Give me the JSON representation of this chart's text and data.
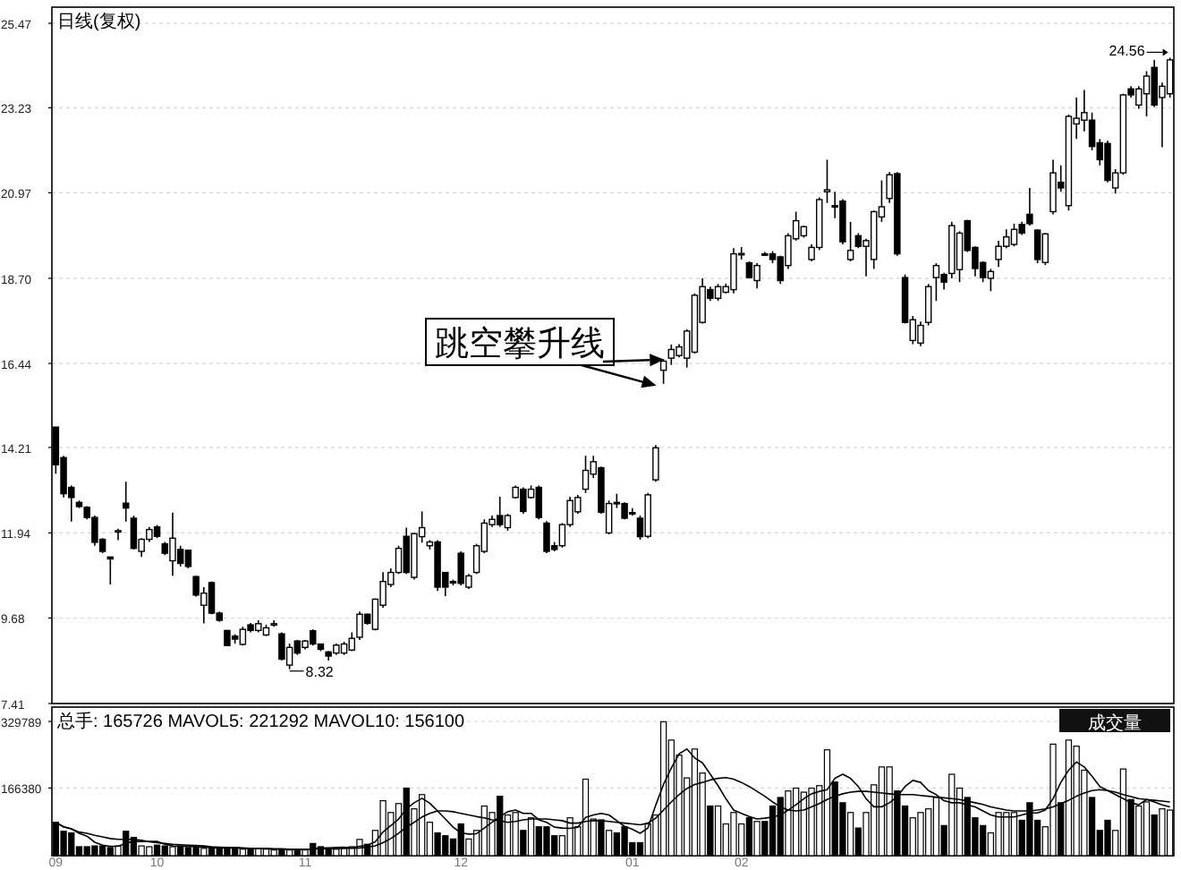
{
  "chart_data": [
    {
      "type": "candlestick",
      "title": "日线(复权)",
      "categories": [
        "09",
        null,
        null,
        null,
        null,
        null,
        null,
        null,
        null,
        null,
        null,
        null,
        null,
        "10",
        null,
        null,
        null,
        null,
        null,
        null,
        null,
        null,
        null,
        null,
        null,
        null,
        null,
        null,
        null,
        null,
        null,
        null,
        "11",
        null,
        null,
        null,
        null,
        null,
        null,
        null,
        null,
        null,
        null,
        null,
        null,
        null,
        null,
        null,
        null,
        null,
        null,
        null,
        "12",
        null,
        null,
        null,
        null,
        null,
        null,
        null,
        null,
        null,
        null,
        null,
        null,
        null,
        null,
        null,
        null,
        null,
        null,
        null,
        null,
        null,
        "01",
        null,
        null,
        null,
        null,
        null,
        null,
        null,
        null,
        null,
        null,
        null,
        null,
        null,
        "02",
        null,
        null,
        null,
        null,
        null,
        null,
        null,
        null,
        null,
        null,
        null,
        null,
        null,
        null,
        null,
        null,
        null,
        null,
        null,
        null,
        null,
        null,
        null,
        null,
        null,
        null,
        null,
        null,
        null,
        null,
        null,
        null,
        null,
        null,
        null,
        null,
        null,
        null,
        null,
        null,
        null,
        null,
        null,
        null,
        null,
        null,
        null,
        null,
        null,
        null,
        null,
        null,
        null,
        null,
        null
      ],
      "ohlc": [
        [
          14.75,
          14.75,
          13.51,
          13.75
        ],
        [
          13.94,
          13.99,
          12.88,
          12.98
        ],
        [
          13.15,
          13.2,
          12.24,
          12.88
        ],
        [
          12.75,
          12.8,
          12.6,
          12.64
        ],
        [
          12.62,
          12.65,
          12.3,
          12.35
        ],
        [
          12.35,
          12.4,
          11.6,
          11.69
        ],
        [
          11.77,
          11.8,
          11.4,
          11.45
        ],
        [
          11.3,
          11.3,
          10.57,
          11.25
        ],
        [
          11.98,
          12.05,
          11.75,
          12.0
        ],
        [
          12.73,
          13.3,
          12.24,
          12.6
        ],
        [
          12.33,
          12.4,
          11.5,
          11.53
        ],
        [
          11.45,
          11.8,
          11.3,
          11.77
        ],
        [
          11.77,
          12.1,
          11.7,
          12.03
        ],
        [
          12.1,
          12.15,
          11.8,
          11.85
        ],
        [
          11.65,
          11.7,
          11.35,
          11.4
        ],
        [
          11.2,
          12.48,
          10.8,
          11.8
        ],
        [
          11.5,
          11.6,
          11.05,
          11.13
        ],
        [
          11.48,
          11.5,
          11.0,
          11.05
        ],
        [
          10.78,
          10.8,
          10.25,
          10.29
        ],
        [
          10.02,
          10.5,
          9.54,
          10.34
        ],
        [
          10.62,
          10.65,
          9.78,
          9.81
        ],
        [
          9.81,
          9.85,
          9.58,
          9.62
        ],
        [
          9.35,
          9.36,
          8.93,
          8.95
        ],
        [
          9.2,
          9.25,
          9.0,
          9.12
        ],
        [
          8.98,
          9.45,
          8.95,
          9.38
        ],
        [
          9.5,
          9.55,
          9.3,
          9.35
        ],
        [
          9.35,
          9.62,
          9.3,
          9.53
        ],
        [
          9.23,
          9.5,
          9.2,
          9.42
        ],
        [
          9.5,
          9.62,
          9.45,
          9.53
        ],
        [
          9.26,
          9.3,
          8.55,
          8.59
        ],
        [
          8.43,
          9.0,
          8.32,
          8.9
        ],
        [
          9.07,
          9.1,
          8.7,
          8.75
        ],
        [
          8.9,
          9.1,
          8.85,
          9.07
        ],
        [
          9.34,
          9.38,
          8.95,
          8.99
        ],
        [
          8.99,
          9.0,
          8.8,
          8.85
        ],
        [
          8.78,
          8.8,
          8.55,
          8.67
        ],
        [
          8.75,
          9.0,
          8.7,
          8.96
        ],
        [
          8.75,
          9.05,
          8.7,
          8.99
        ],
        [
          8.83,
          9.3,
          8.8,
          9.14
        ],
        [
          9.17,
          9.85,
          9.1,
          9.78
        ],
        [
          9.78,
          9.8,
          9.5,
          9.54
        ],
        [
          9.38,
          10.2,
          9.35,
          10.18
        ],
        [
          10.02,
          10.9,
          9.95,
          10.65
        ],
        [
          10.57,
          11.0,
          10.5,
          10.89
        ],
        [
          10.89,
          11.6,
          10.85,
          11.53
        ],
        [
          11.85,
          12.08,
          10.85,
          10.89
        ],
        [
          10.76,
          11.95,
          10.7,
          11.92
        ],
        [
          11.84,
          12.51,
          11.68,
          12.08
        ],
        [
          11.6,
          11.75,
          11.5,
          11.7
        ],
        [
          11.7,
          11.75,
          10.4,
          10.5
        ],
        [
          10.89,
          10.9,
          10.26,
          10.5
        ],
        [
          10.65,
          10.7,
          10.55,
          10.62
        ],
        [
          11.4,
          11.45,
          10.55,
          10.6
        ],
        [
          10.5,
          10.85,
          10.45,
          10.8
        ],
        [
          10.89,
          11.65,
          10.85,
          11.6
        ],
        [
          11.45,
          12.3,
          11.4,
          12.2
        ],
        [
          12.16,
          12.4,
          12.1,
          12.3
        ],
        [
          12.4,
          12.9,
          12.1,
          12.16
        ],
        [
          12.08,
          12.45,
          12.0,
          12.4
        ],
        [
          12.88,
          13.2,
          12.85,
          13.15
        ],
        [
          13.1,
          13.15,
          12.45,
          12.51
        ],
        [
          12.88,
          13.2,
          12.85,
          13.1
        ],
        [
          13.15,
          13.2,
          12.3,
          12.35
        ],
        [
          12.2,
          12.25,
          11.4,
          11.45
        ],
        [
          11.6,
          11.7,
          11.45,
          11.5
        ],
        [
          11.6,
          12.2,
          11.55,
          12.16
        ],
        [
          12.16,
          12.9,
          12.1,
          12.8
        ],
        [
          12.5,
          12.95,
          12.45,
          12.88
        ],
        [
          13.1,
          13.99,
          13.0,
          13.6
        ],
        [
          13.5,
          13.99,
          13.4,
          13.83
        ],
        [
          13.67,
          13.7,
          12.45,
          12.49
        ],
        [
          11.94,
          12.8,
          11.9,
          12.72
        ],
        [
          12.75,
          12.98,
          12.6,
          12.72
        ],
        [
          12.72,
          12.75,
          12.3,
          12.33
        ],
        [
          12.48,
          12.6,
          12.4,
          12.46
        ],
        [
          12.33,
          12.4,
          11.76,
          11.84
        ],
        [
          11.85,
          13.0,
          11.8,
          12.95
        ],
        [
          13.35,
          14.27,
          13.3,
          14.2
        ],
        [
          16.26,
          16.55,
          15.9,
          16.5
        ],
        [
          16.58,
          16.94,
          16.4,
          16.81
        ],
        [
          16.65,
          16.95,
          16.6,
          16.88
        ],
        [
          16.58,
          17.35,
          16.33,
          17.3
        ],
        [
          16.74,
          18.3,
          16.7,
          18.25
        ],
        [
          17.53,
          18.7,
          17.5,
          18.48
        ],
        [
          18.4,
          18.48,
          18.1,
          18.17
        ],
        [
          18.17,
          18.55,
          18.1,
          18.48
        ],
        [
          18.33,
          18.56,
          18.3,
          18.48
        ],
        [
          18.4,
          19.5,
          18.3,
          19.35
        ],
        [
          19.35,
          19.53,
          19.2,
          19.36
        ],
        [
          19.11,
          19.15,
          18.7,
          18.72
        ],
        [
          18.64,
          19.1,
          18.43,
          19.04
        ],
        [
          19.35,
          19.4,
          19.3,
          19.33
        ],
        [
          19.35,
          19.42,
          19.1,
          19.2
        ],
        [
          19.27,
          19.3,
          18.55,
          18.64
        ],
        [
          19.04,
          19.9,
          18.95,
          19.83
        ],
        [
          19.75,
          20.47,
          19.7,
          20.23
        ],
        [
          19.83,
          20.1,
          19.78,
          20.07
        ],
        [
          19.2,
          19.6,
          19.15,
          19.52
        ],
        [
          19.52,
          20.85,
          19.45,
          20.79
        ],
        [
          21.0,
          21.85,
          20.7,
          21.05
        ],
        [
          20.63,
          21.0,
          20.3,
          20.6
        ],
        [
          20.75,
          20.8,
          19.6,
          19.67
        ],
        [
          19.2,
          20.2,
          19.15,
          19.44
        ],
        [
          19.83,
          19.9,
          19.5,
          19.55
        ],
        [
          19.55,
          19.75,
          18.75,
          19.7
        ],
        [
          19.2,
          20.5,
          18.95,
          20.47
        ],
        [
          20.33,
          21.3,
          20.2,
          20.6
        ],
        [
          20.82,
          21.52,
          20.7,
          21.45
        ],
        [
          21.48,
          21.52,
          19.3,
          19.35
        ],
        [
          18.72,
          18.8,
          17.5,
          17.53
        ],
        [
          17.05,
          17.7,
          16.95,
          17.6
        ],
        [
          16.98,
          17.55,
          16.9,
          17.45
        ],
        [
          17.53,
          18.55,
          17.45,
          18.48
        ],
        [
          18.72,
          19.1,
          18.1,
          19.04
        ],
        [
          18.8,
          18.85,
          18.4,
          18.6
        ],
        [
          18.83,
          20.2,
          18.7,
          20.1
        ],
        [
          18.93,
          19.95,
          18.6,
          19.9
        ],
        [
          20.23,
          20.25,
          19.4,
          19.44
        ],
        [
          19.52,
          19.55,
          18.75,
          18.96
        ],
        [
          19.12,
          19.15,
          18.6,
          18.72
        ],
        [
          18.7,
          18.95,
          18.36,
          18.88
        ],
        [
          19.2,
          19.7,
          19.0,
          19.55
        ],
        [
          19.55,
          20.0,
          19.5,
          19.8
        ],
        [
          19.6,
          20.15,
          19.55,
          20.0
        ],
        [
          20.13,
          20.2,
          19.85,
          19.9
        ],
        [
          20.4,
          21.1,
          20.1,
          20.15
        ],
        [
          19.98,
          20.0,
          19.1,
          19.2
        ],
        [
          19.12,
          19.9,
          19.05,
          19.88
        ],
        [
          20.47,
          21.85,
          20.4,
          21.5
        ],
        [
          21.25,
          21.7,
          21.0,
          21.1
        ],
        [
          20.63,
          23.05,
          20.5,
          23.0
        ],
        [
          22.8,
          23.5,
          22.4,
          22.95
        ],
        [
          22.9,
          23.7,
          22.6,
          23.1
        ],
        [
          22.9,
          23.1,
          22.1,
          22.2
        ],
        [
          22.3,
          22.4,
          21.7,
          21.85
        ],
        [
          22.28,
          22.35,
          21.25,
          21.3
        ],
        [
          21.1,
          21.6,
          20.95,
          21.5
        ],
        [
          21.5,
          23.6,
          21.45,
          23.57
        ],
        [
          23.73,
          23.8,
          23.5,
          23.57
        ],
        [
          23.3,
          23.8,
          23.2,
          23.73
        ],
        [
          23.6,
          24.2,
          23.0,
          24.07
        ],
        [
          24.3,
          24.5,
          23.25,
          23.3
        ],
        [
          23.5,
          23.9,
          22.18,
          23.8
        ],
        [
          23.6,
          24.56,
          23.5,
          24.5
        ]
      ],
      "ylim": [
        7.41,
        25.9
      ],
      "yticks": [
        7.41,
        9.68,
        11.94,
        14.21,
        16.44,
        {
          "value": 18.7,
          "label": "18.70"
        },
        20.97,
        23.23,
        25.47
      ],
      "grid": "y",
      "tick_labels": "y",
      "annotations": [
        "跳空攀升线",
        "8.32",
        "24.56"
      ]
    },
    {
      "type": "bar",
      "title": "总手: 165726 MAVOL5: 221292 MAVOL10: 156100",
      "categories": [
        "09",
        null,
        null,
        null,
        null,
        null,
        null,
        null,
        null,
        null,
        null,
        null,
        null,
        "10",
        null,
        null,
        null,
        null,
        null,
        null,
        null,
        null,
        null,
        null,
        null,
        null,
        null,
        null,
        null,
        null,
        null,
        null,
        "11",
        null,
        null,
        null,
        null,
        null,
        null,
        null,
        null,
        null,
        null,
        null,
        null,
        null,
        null,
        null,
        null,
        null,
        null,
        null,
        "12",
        null,
        null,
        null,
        null,
        null,
        null,
        null,
        null,
        null,
        null,
        null,
        null,
        null,
        null,
        null,
        null,
        null,
        null,
        null,
        null,
        null,
        "01",
        null,
        null,
        null,
        null,
        null,
        null,
        null,
        null,
        null,
        null,
        null,
        null,
        null,
        "02",
        null,
        null,
        null,
        null,
        null,
        null,
        null,
        null,
        null,
        null,
        null,
        null,
        null,
        null,
        null,
        null,
        null,
        null,
        null,
        null,
        null,
        null,
        null,
        null,
        null,
        null,
        null,
        null,
        null,
        null,
        null,
        null,
        null,
        null,
        null,
        null,
        null,
        null,
        null,
        null,
        null,
        null,
        null,
        null,
        null,
        null,
        null,
        null,
        null,
        null,
        null,
        null,
        null,
        null,
        null
      ],
      "series": [
        {
          "type": "bar",
          "values": [
            82000,
            60000,
            56000,
            22000,
            22000,
            24000,
            24000,
            20000,
            24000,
            60000,
            45000,
            24000,
            22000,
            26000,
            24000,
            22000,
            24000,
            20000,
            22000,
            18000,
            20000,
            18000,
            20000,
            18000,
            16000,
            16000,
            18000,
            16000,
            14000,
            16000,
            14000,
            13000,
            14000,
            30000,
            22000,
            16000,
            16000,
            18000,
            22000,
            40000,
            28000,
            62000,
            135000,
            106000,
            128000,
            166000,
            115000,
            150000,
            82000,
            56000,
            49000,
            41000,
            78000,
            41000,
            62000,
            122000,
            106000,
            146000,
            100000,
            106000,
            62000,
            93000,
            71000,
            71000,
            49000,
            49000,
            93000,
            71000,
            188000,
            90000,
            88000,
            62000,
            56000,
            71000,
            32000,
            32000,
            78000,
            100000,
            329000,
            284000,
            247000,
            191000,
            262000,
            203000,
            122000,
            122000,
            78000,
            106000,
            78000,
            93000,
            84000,
            84000,
            122000,
            143000,
            159000,
            166000,
            156000,
            166000,
            172000,
            260000,
            181000,
            130000,
            106000,
            68000,
            106000,
            174000,
            218000,
            218000,
            159000,
            122000,
            93000,
            106000,
            115000,
            143000,
            74000,
            200000,
            166000,
            143000,
            93000,
            74000,
            56000,
            106000,
            106000,
            106000,
            87000,
            130000,
            87000,
            71000,
            274000,
            130000,
            284000,
            269000,
            210000,
            143000,
            62000,
            87000,
            62000,
            213000,
            138000,
            122000,
            132000,
            100000,
            115000,
            112000
          ],
          "colors": [
            "#000000",
            "#000000",
            "#000000",
            "#000000",
            "#000000",
            "#000000",
            "#000000",
            "#000000",
            "#ffffff",
            "#000000",
            "#000000",
            "#ffffff",
            "#ffffff",
            "#000000",
            "#000000",
            "#ffffff",
            "#000000",
            "#000000",
            "#000000",
            "#ffffff",
            "#000000",
            "#000000",
            "#000000",
            "#000000",
            "#ffffff",
            "#000000",
            "#ffffff",
            "#ffffff",
            "#ffffff",
            "#000000",
            "#ffffff",
            "#000000",
            "#ffffff",
            "#000000",
            "#000000",
            "#000000",
            "#ffffff",
            "#ffffff",
            "#ffffff",
            "#ffffff",
            "#000000",
            "#ffffff",
            "#ffffff",
            "#ffffff",
            "#ffffff",
            "#000000",
            "#ffffff",
            "#ffffff",
            "#ffffff",
            "#000000",
            "#000000",
            "#000000",
            "#000000",
            "#ffffff",
            "#ffffff",
            "#ffffff",
            "#ffffff",
            "#000000",
            "#ffffff",
            "#ffffff",
            "#000000",
            "#ffffff",
            "#000000",
            "#000000",
            "#000000",
            "#ffffff",
            "#ffffff",
            "#ffffff",
            "#ffffff",
            "#ffffff",
            "#000000",
            "#ffffff",
            "#000000",
            "#000000",
            "#000000",
            "#000000",
            "#ffffff",
            "#ffffff",
            "#ffffff",
            "#ffffff",
            "#ffffff",
            "#ffffff",
            "#ffffff",
            "#ffffff",
            "#000000",
            "#ffffff",
            "#ffffff",
            "#ffffff",
            "#ffffff",
            "#000000",
            "#ffffff",
            "#000000",
            "#000000",
            "#000000",
            "#ffffff",
            "#ffffff",
            "#ffffff",
            "#ffffff",
            "#ffffff",
            "#ffffff",
            "#000000",
            "#000000",
            "#ffffff",
            "#000000",
            "#ffffff",
            "#ffffff",
            "#ffffff",
            "#ffffff",
            "#000000",
            "#000000",
            "#ffffff",
            "#ffffff",
            "#ffffff",
            "#ffffff",
            "#000000",
            "#ffffff",
            "#ffffff",
            "#000000",
            "#000000",
            "#000000",
            "#ffffff",
            "#ffffff",
            "#ffffff",
            "#ffffff",
            "#000000",
            "#000000",
            "#000000",
            "#ffffff",
            "#ffffff",
            "#000000",
            "#ffffff",
            "#ffffff",
            "#ffffff",
            "#000000",
            "#000000",
            "#000000",
            "#ffffff",
            "#ffffff",
            "#000000",
            "#ffffff",
            "#ffffff",
            "#000000",
            "#ffffff",
            "#ffffff"
          ]
        },
        {
          "type": "line",
          "color": "#000000",
          "values": [
            82000,
            71000,
            66000,
            55000,
            48000,
            33000,
            26000,
            23000,
            23000,
            31000,
            35000,
            35000,
            35000,
            35000,
            28000,
            24000,
            23000,
            23000,
            22000,
            21000,
            20000,
            19000,
            19000,
            19000,
            18000,
            17000,
            17000,
            17000,
            16000,
            16000,
            15000,
            15000,
            15000,
            17000,
            19000,
            19000,
            20000,
            21000,
            19000,
            23000,
            26000,
            34000,
            58000,
            74000,
            90000,
            115000,
            130000,
            141000,
            129000,
            110000,
            90000,
            70000,
            56000,
            53000,
            54000,
            68000,
            82000,
            96000,
            108000,
            112000,
            104000,
            104000,
            88000,
            82000,
            70000,
            68000,
            67000,
            70000,
            94000,
            100000,
            104000,
            100000,
            86000,
            72000,
            65000,
            55000,
            68000,
            124000,
            175000,
            215000,
            250000,
            262000,
            240000,
            228000,
            200000,
            172000,
            140000,
            112000,
            104000,
            96000,
            90000,
            92000,
            95000,
            100000,
            112000,
            125000,
            140000,
            152000,
            158000,
            162000,
            190000,
            200000,
            190000,
            170000,
            140000,
            120000,
            120000,
            130000,
            145000,
            170000,
            185000,
            180000,
            160000,
            150000,
            135000,
            130000,
            130000,
            125000,
            120000,
            110000,
            100000,
            95000,
            95000,
            95000,
            100000,
            105000,
            105000,
            112000,
            140000,
            180000,
            210000,
            230000,
            218000,
            195000,
            170000,
            160000,
            150000,
            140000,
            130000,
            125000,
            138000,
            132000,
            125000,
            120000
          ]
        },
        {
          "type": "line",
          "color": "#000000",
          "values": [
            82000,
            71000,
            66000,
            58000,
            55000,
            50000,
            46000,
            42000,
            40000,
            40000,
            40000,
            38000,
            34000,
            32000,
            30000,
            28000,
            27000,
            26000,
            25000,
            24000,
            22000,
            21000,
            20000,
            20000,
            19000,
            18000,
            18000,
            18000,
            17000,
            17000,
            16000,
            16000,
            16000,
            16000,
            17000,
            17000,
            17000,
            18000,
            18000,
            19000,
            21000,
            24000,
            32000,
            42000,
            55000,
            70000,
            82000,
            95000,
            104000,
            110000,
            110000,
            108000,
            104000,
            100000,
            96000,
            93000,
            88000,
            86000,
            82000,
            84000,
            88000,
            90000,
            90000,
            90000,
            88000,
            86000,
            80000,
            80000,
            84000,
            86000,
            86000,
            84000,
            82000,
            80000,
            78000,
            76000,
            80000,
            92000,
            112000,
            132000,
            150000,
            165000,
            175000,
            180000,
            186000,
            190000,
            192000,
            188000,
            180000,
            170000,
            158000,
            146000,
            132000,
            120000,
            112000,
            110000,
            112000,
            120000,
            128000,
            138000,
            146000,
            152000,
            156000,
            158000,
            158000,
            156000,
            154000,
            152000,
            150000,
            150000,
            150000,
            148000,
            146000,
            144000,
            142000,
            140000,
            138000,
            134000,
            130000,
            126000,
            120000,
            116000,
            112000,
            110000,
            110000,
            110000,
            112000,
            115000,
            120000,
            128000,
            136000,
            146000,
            154000,
            160000,
            162000,
            160000,
            156000,
            150000,
            145000,
            140000,
            138000,
            136000,
            134000,
            132000
          ]
        }
      ],
      "ylim": [
        0,
        365000
      ],
      "yticks": [
        166380,
        329789
      ],
      "grid": "y",
      "annotations": [
        "成交量"
      ]
    }
  ]
}
